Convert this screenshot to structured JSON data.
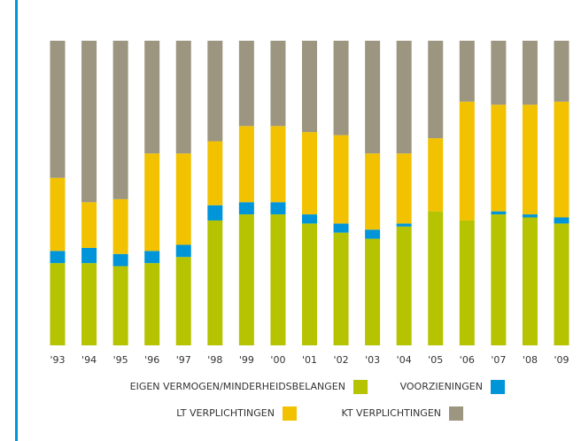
{
  "chart_data": {
    "type": "bar",
    "stacked": true,
    "categories": [
      "'93",
      "'94",
      "'95",
      "'96",
      "'97",
      "'98",
      "'99",
      "'00",
      "'01",
      "'02",
      "'03",
      "'04",
      "'05",
      "'06",
      "'07",
      "'08",
      "'09"
    ],
    "series": [
      {
        "name": "EIGEN VERMOGEN/MINDERHEIDSBELANGEN",
        "color": "#b5c300",
        "values": [
          27,
          27,
          26,
          27,
          29,
          41,
          43,
          43,
          40,
          37,
          35,
          39,
          44,
          41,
          43,
          42,
          40
        ]
      },
      {
        "name": "VOORZIENINGEN",
        "color": "#0095d9",
        "values": [
          4,
          5,
          4,
          4,
          4,
          5,
          4,
          4,
          3,
          3,
          3,
          1,
          0,
          0,
          1,
          1,
          2
        ]
      },
      {
        "name": "LT VERPLICHTINGEN",
        "color": "#f2c200",
        "values": [
          24,
          15,
          18,
          32,
          30,
          21,
          25,
          25,
          27,
          29,
          25,
          23,
          24,
          39,
          35,
          36,
          38
        ]
      },
      {
        "name": "KT VERPLICHTINGEN",
        "color": "#9c9580",
        "values": [
          45,
          53,
          52,
          37,
          37,
          33,
          28,
          28,
          30,
          31,
          37,
          37,
          32,
          20,
          21,
          21,
          20
        ]
      }
    ],
    "ylim": [
      0,
      100
    ]
  }
}
